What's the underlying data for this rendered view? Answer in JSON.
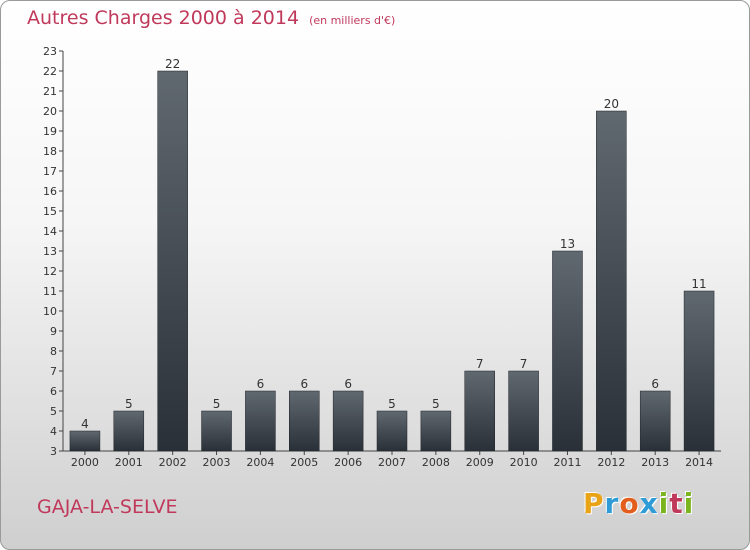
{
  "header": {
    "title": "Autres Charges 2000 à 2014",
    "subtitle": "(en milliers d'€)"
  },
  "footer": {
    "place": "GAJA-LA-SELVE",
    "logo": "Proxiti"
  },
  "colors": {
    "title": "#c0395b",
    "bar_top": "#606870",
    "bar_bottom": "#2a3038",
    "logo_letters": [
      "#e8a317",
      "#2e9bd6",
      "#e35d1c",
      "#2e9bd6",
      "#7ab51d",
      "#c0395b",
      "#7ab51d"
    ]
  },
  "chart_data": {
    "type": "bar",
    "title": "Autres Charges 2000 à 2014",
    "categories": [
      "2000",
      "2001",
      "2002",
      "2003",
      "2004",
      "2005",
      "2006",
      "2007",
      "2008",
      "2009",
      "2010",
      "2011",
      "2012",
      "2013",
      "2014"
    ],
    "values": [
      4,
      5,
      22,
      5,
      6,
      6,
      6,
      5,
      5,
      7,
      7,
      13,
      20,
      6,
      11
    ],
    "ylim": [
      3,
      23
    ],
    "yticks": [
      3,
      4,
      5,
      6,
      7,
      8,
      9,
      10,
      11,
      12,
      13,
      14,
      15,
      16,
      17,
      18,
      19,
      20,
      21,
      22,
      23
    ],
    "grid": false,
    "data_labels": true
  }
}
